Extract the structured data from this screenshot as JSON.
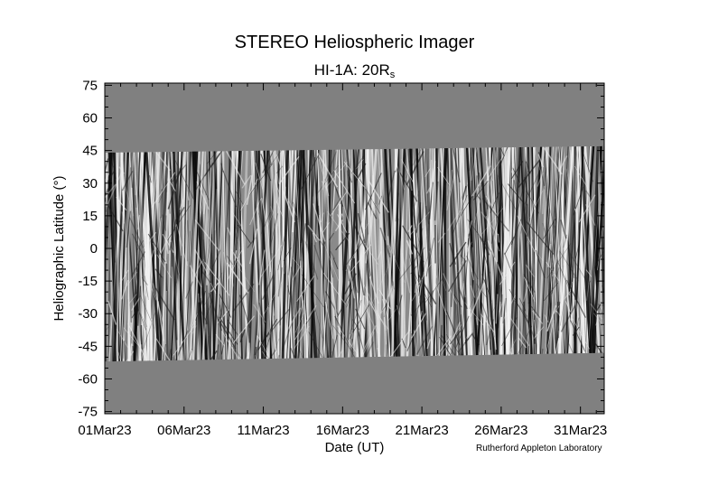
{
  "title": "STEREO Heliospheric Imager",
  "subtitle": {
    "main": "HI-1A: 20R",
    "subscript": "s"
  },
  "credit": "Rutherford Appleton Laboratory",
  "colors": {
    "background": "#ffffff",
    "no_data_fill": "#808080",
    "stripe_dark": "#0a0a0a",
    "stripe_light": "#f2f2f2"
  },
  "chart_data": {
    "type": "heatmap",
    "title": "STEREO Heliospheric Imager",
    "subtitle": "HI-1A: 20Rs",
    "xlabel": "Date (UT)",
    "ylabel": "Heliographic Latitude (°)",
    "x_tick_labels": [
      "01Mar23",
      "06Mar23",
      "11Mar23",
      "16Mar23",
      "21Mar23",
      "26Mar23",
      "31Mar23"
    ],
    "x_range_days": [
      0,
      31.5
    ],
    "x_tick_days": [
      0,
      5,
      10,
      15,
      20,
      25,
      30
    ],
    "ylim": [
      -76,
      76
    ],
    "y_ticks": [
      75,
      60,
      45,
      30,
      15,
      0,
      -15,
      -30,
      -45,
      -60,
      -75
    ],
    "data_coverage": {
      "upper_latitude_start": 44,
      "upper_latitude_end": 47,
      "lower_latitude_start": -52,
      "lower_latitude_end": -48
    },
    "grid": false,
    "legend": "none"
  }
}
